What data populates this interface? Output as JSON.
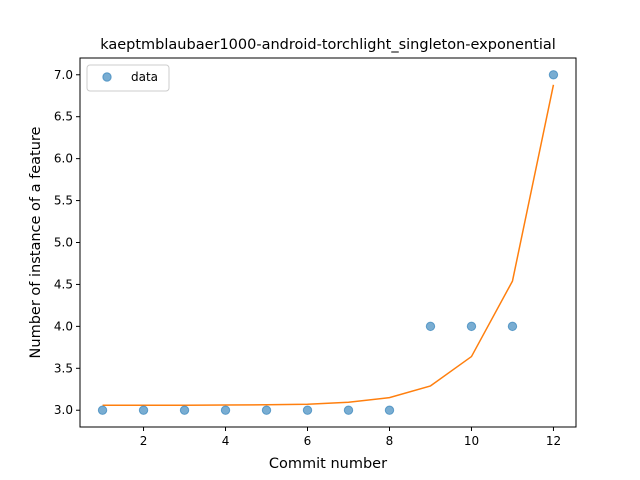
{
  "chart_data": {
    "type": "scatter",
    "title": "kaeptmblaubaer1000-android-torchlight_singleton-exponential",
    "xlabel": "Commit number",
    "ylabel": "Number of instance of a feature",
    "xlim": [
      0.45,
      12.55
    ],
    "ylim": [
      2.8,
      7.2
    ],
    "x_ticks": [
      2,
      4,
      6,
      8,
      10,
      12
    ],
    "y_ticks": [
      3.0,
      3.5,
      4.0,
      4.5,
      5.0,
      5.5,
      6.0,
      6.5,
      7.0
    ],
    "x_tick_labels": [
      "2",
      "4",
      "6",
      "8",
      "10",
      "12"
    ],
    "y_tick_labels": [
      "3.0",
      "3.5",
      "4.0",
      "4.5",
      "5.0",
      "5.5",
      "6.0",
      "6.5",
      "7.0"
    ],
    "grid": false,
    "legend_position": "top-left",
    "series": [
      {
        "name": "data",
        "kind": "scatter",
        "color": "#1f77b4",
        "x": [
          1,
          2,
          3,
          4,
          5,
          6,
          7,
          8,
          9,
          10,
          11,
          12
        ],
        "y": [
          3.0,
          3.0,
          3.0,
          3.0,
          3.0,
          3.0,
          3.0,
          3.0,
          4.0,
          4.0,
          4.0,
          7.0
        ]
      },
      {
        "kind": "line",
        "color": "#ff7f0e",
        "x": [
          1,
          2,
          3,
          4,
          5,
          6,
          7,
          8,
          9,
          10,
          11,
          12
        ],
        "y": [
          3.06,
          3.06,
          3.06,
          3.062,
          3.065,
          3.072,
          3.095,
          3.15,
          3.29,
          3.64,
          4.54,
          6.88
        ]
      }
    ]
  }
}
